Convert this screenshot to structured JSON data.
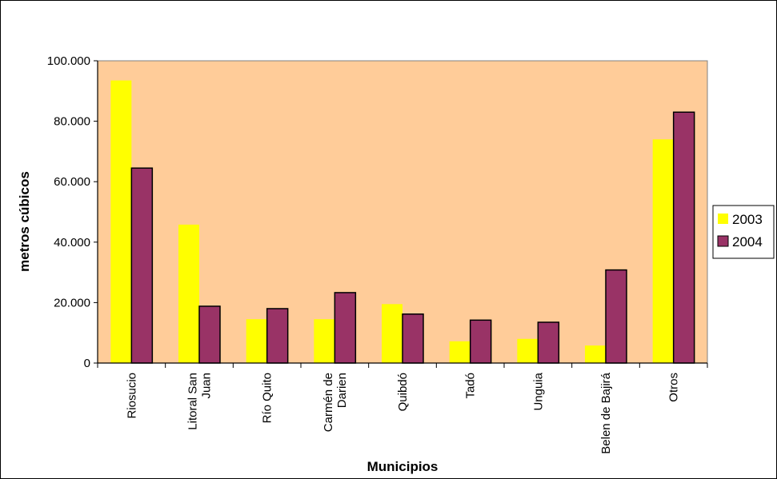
{
  "chart_data": {
    "type": "bar",
    "title": "",
    "xlabel": "Municipios",
    "ylabel": "metros  cúbicos",
    "ylim": [
      0,
      100000
    ],
    "yticks": [
      0,
      20000,
      40000,
      60000,
      80000,
      100000
    ],
    "ytick_labels": [
      "0",
      "20.000",
      "40.000",
      "60.000",
      "80.000",
      "100.000"
    ],
    "categories": [
      [
        "Riosucio"
      ],
      [
        "Litoral San",
        "Juan"
      ],
      [
        "Río Quito"
      ],
      [
        "Carmén de",
        "Darien"
      ],
      [
        "Quibdó"
      ],
      [
        "Tadó"
      ],
      [
        "Unguia"
      ],
      [
        "Belen de Bajirá"
      ],
      [
        "Otros"
      ]
    ],
    "series": [
      {
        "name": "2003",
        "color": "#ffff00",
        "values": [
          93500,
          45800,
          14500,
          14500,
          19500,
          7200,
          8000,
          5800,
          74000
        ]
      },
      {
        "name": "2004",
        "color": "#993366",
        "values": [
          64500,
          18800,
          18000,
          23300,
          16200,
          14200,
          13500,
          30800,
          83000
        ]
      }
    ],
    "plot_background": "#ffcc99",
    "legend": "right",
    "grid": false
  }
}
